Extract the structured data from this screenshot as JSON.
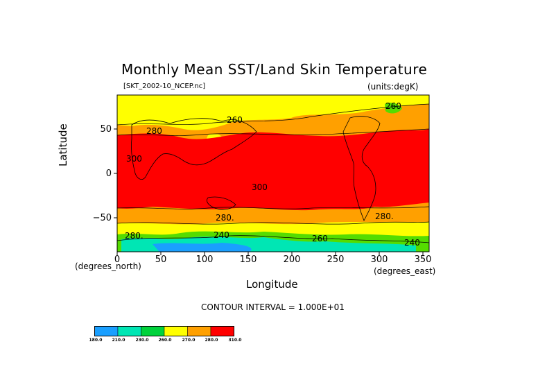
{
  "title": "Monthly Mean SST/Land Skin Temperature",
  "subtitle_left": "[SKT_2002-10_NCEP.nc]",
  "subtitle_right": "(units:degK)",
  "chart_data": {
    "type": "contour-map",
    "xlabel": "Longitude",
    "ylabel": "Latitude",
    "x_unit_label": "(degrees_east)",
    "y_unit_label": "(degrees_north)",
    "x_ticks": [
      "0",
      "50",
      "100",
      "150",
      "200",
      "250",
      "300",
      "350"
    ],
    "y_ticks": [
      "50",
      "0",
      "−50"
    ],
    "xlim": [
      0,
      357.5
    ],
    "ylim": [
      -88,
      88
    ],
    "contour_labels": [
      "280",
      "260",
      "300",
      "280.",
      "300",
      "280.",
      "280.",
      "260",
      "260",
      "240",
      "240"
    ],
    "contour_interval": "CONTOUR INTERVAL = 1.000E+01",
    "colorbar": {
      "labels": [
        "180.0",
        "210.0",
        "230.0",
        "260.0",
        "270.0",
        "280.0",
        "310.0"
      ],
      "colors": [
        "#1a9fff",
        "#00e6b4",
        "#00d23c",
        "#ffff00",
        "#ffa000",
        "#ff0000"
      ]
    },
    "field_colors": {
      "tropics": "#ff0000",
      "mid_latitudes": "#ffa000",
      "high_latitudes": "#ffff00",
      "polar_green": "#55dc00",
      "polar_teal": "#00e6b4",
      "polar_blue": "#1a9fff"
    }
  }
}
